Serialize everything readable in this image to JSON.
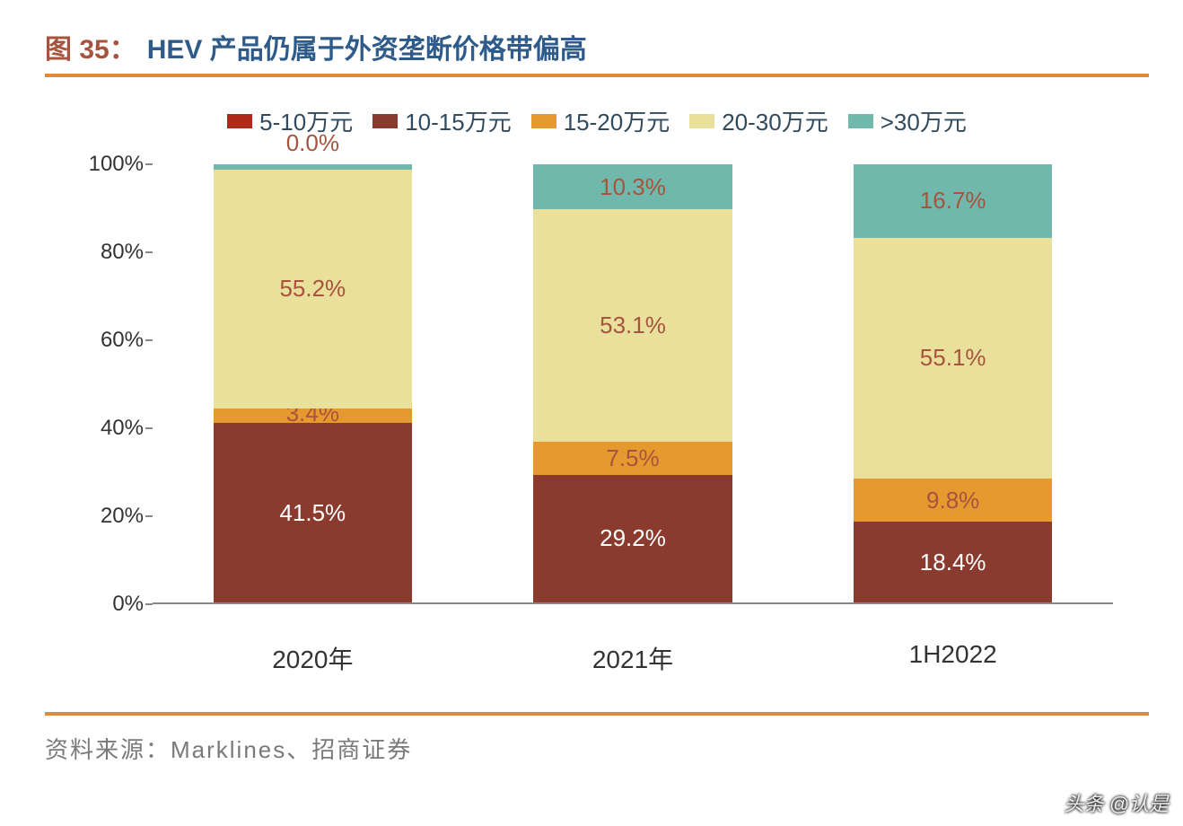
{
  "title": {
    "fig_label": "图 35：",
    "text": "HEV 产品仍属于外资垄断价格带偏高",
    "label_color": "#a6543e",
    "text_color": "#2f5b8a",
    "fontsize": 30
  },
  "rule_color": "#e08a3b",
  "legend": {
    "fontsize": 26,
    "text_color": "#314a5e",
    "items": [
      {
        "label": "5-10万元",
        "color": "#b02a1a"
      },
      {
        "label": "10-15万元",
        "color": "#8a3b2e"
      },
      {
        "label": "15-20万元",
        "color": "#e6992e"
      },
      {
        "label": "20-30万元",
        "color": "#e8e09b"
      },
      {
        "label": ">30万元",
        "color": "#6fb8ab"
      }
    ]
  },
  "chart": {
    "type": "stacked-bar-100pct",
    "ylim": [
      0,
      100
    ],
    "ytick_step": 20,
    "ytick_suffix": "%",
    "axis_color": "#888888",
    "tick_fontsize": 24,
    "xlabel_fontsize": 28,
    "bar_width_pct": 62,
    "categories": [
      "2020年",
      "2021年",
      "1H2022"
    ],
    "series": [
      {
        "key": "5-10",
        "color": "#b02a1a",
        "label_color": "#ffffff"
      },
      {
        "key": "10-15",
        "color": "#8a3b2e",
        "label_color": "#ffffff"
      },
      {
        "key": "15-20",
        "color": "#e6992e",
        "label_color": "#a6543e"
      },
      {
        "key": "20-30",
        "color": "#e8e09b",
        "label_color": "#a6543e"
      },
      {
        "key": ">30",
        "color": "#6fb8ab",
        "label_color": "#a6543e"
      }
    ],
    "stacks": [
      {
        "segments": [
          {
            "series": "10-15",
            "value": 41.5,
            "label": "41.5%",
            "label_inside": true
          },
          {
            "series": "15-20",
            "value": 3.4,
            "label": "3.4%",
            "label_inside": false
          },
          {
            "series": "20-30",
            "value": 55.2,
            "label": "55.2%",
            "label_inside": true
          },
          {
            "series": ">30",
            "value": 0.0,
            "label": "0.0%",
            "label_inside": false,
            "min_render": 1.2
          }
        ]
      },
      {
        "segments": [
          {
            "series": "10-15",
            "value": 29.2,
            "label": "29.2%",
            "label_inside": true
          },
          {
            "series": "15-20",
            "value": 7.5,
            "label": "7.5%",
            "label_inside": false
          },
          {
            "series": "20-30",
            "value": 53.1,
            "label": "53.1%",
            "label_inside": true
          },
          {
            "series": ">30",
            "value": 10.3,
            "label": "10.3%",
            "label_inside": false
          }
        ]
      },
      {
        "segments": [
          {
            "series": "10-15",
            "value": 18.4,
            "label": "18.4%",
            "label_inside": true
          },
          {
            "series": "15-20",
            "value": 9.8,
            "label": "9.8%",
            "label_inside": false
          },
          {
            "series": "20-30",
            "value": 55.1,
            "label": "55.1%",
            "label_inside": true
          },
          {
            "series": ">30",
            "value": 16.7,
            "label": "16.7%",
            "label_inside": false
          }
        ]
      }
    ]
  },
  "source": {
    "text": "资料来源：Marklines、招商证券",
    "color": "#7a7a7a",
    "fontsize": 26
  },
  "watermark": "头条 @认是"
}
